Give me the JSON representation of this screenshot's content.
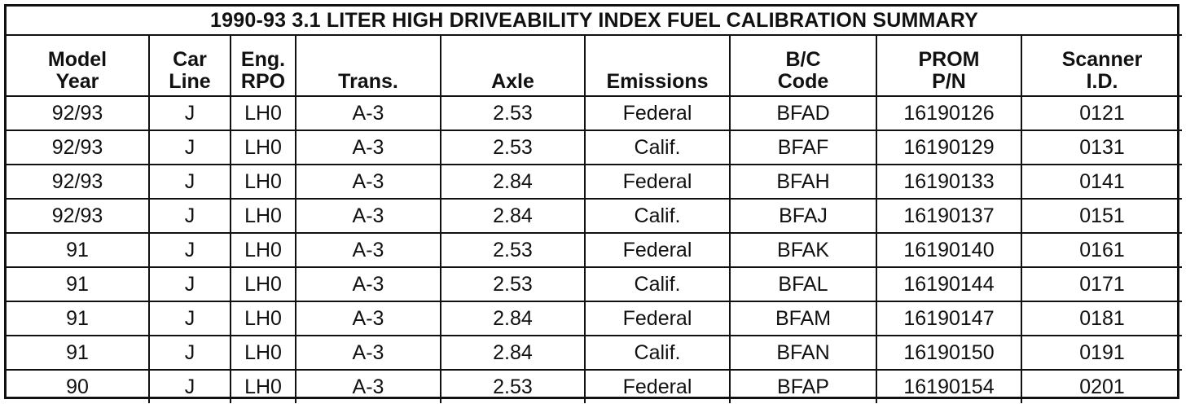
{
  "title": "1990-93 3.1 LITER HIGH DRIVEABILITY INDEX FUEL CALIBRATION SUMMARY",
  "columns": [
    {
      "line1": "Model",
      "line2": "Year"
    },
    {
      "line1": "Car",
      "line2": "Line"
    },
    {
      "line1": "Eng.",
      "line2": "RPO"
    },
    {
      "line1": "",
      "line2": "Trans."
    },
    {
      "line1": "",
      "line2": "Axle"
    },
    {
      "line1": "",
      "line2": "Emissions"
    },
    {
      "line1": "B/C",
      "line2": "Code"
    },
    {
      "line1": "PROM",
      "line2": "P/N"
    },
    {
      "line1": "Scanner",
      "line2": "I.D."
    }
  ],
  "rows": [
    [
      "92/93",
      "J",
      "LH0",
      "A-3",
      "2.53",
      "Federal",
      "BFAD",
      "16190126",
      "0121"
    ],
    [
      "92/93",
      "J",
      "LH0",
      "A-3",
      "2.53",
      "Calif.",
      "BFAF",
      "16190129",
      "0131"
    ],
    [
      "92/93",
      "J",
      "LH0",
      "A-3",
      "2.84",
      "Federal",
      "BFAH",
      "16190133",
      "0141"
    ],
    [
      "92/93",
      "J",
      "LH0",
      "A-3",
      "2.84",
      "Calif.",
      "BFAJ",
      "16190137",
      "0151"
    ],
    [
      "91",
      "J",
      "LH0",
      "A-3",
      "2.53",
      "Federal",
      "BFAK",
      "16190140",
      "0161"
    ],
    [
      "91",
      "J",
      "LH0",
      "A-3",
      "2.53",
      "Calif.",
      "BFAL",
      "16190144",
      "0171"
    ],
    [
      "91",
      "J",
      "LH0",
      "A-3",
      "2.84",
      "Federal",
      "BFAM",
      "16190147",
      "0181"
    ],
    [
      "91",
      "J",
      "LH0",
      "A-3",
      "2.84",
      "Calif.",
      "BFAN",
      "16190150",
      "0191"
    ],
    [
      "90",
      "J",
      "LH0",
      "A-3",
      "2.53",
      "Federal",
      "BFAP",
      "16190154",
      "0201"
    ]
  ]
}
